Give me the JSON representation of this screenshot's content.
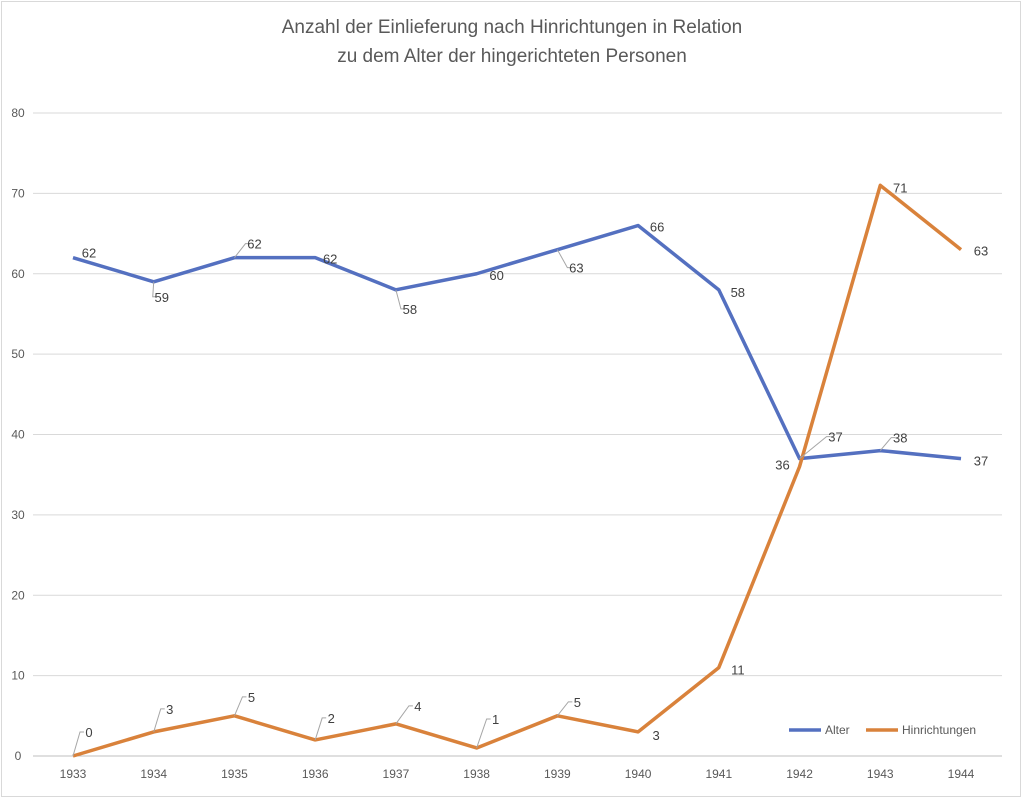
{
  "chart_data": {
    "type": "line",
    "title_lines": [
      "Anzahl der Einlieferung nach Hinrichtungen in Relation",
      "zu dem Alter der hingerichteten Personen"
    ],
    "categories": [
      "1933",
      "1934",
      "1935",
      "1936",
      "1937",
      "1938",
      "1939",
      "1940",
      "1941",
      "1942",
      "1943",
      "1944"
    ],
    "series": [
      {
        "name": "Alter",
        "color": "#5470c0",
        "values": [
          62,
          59,
          62,
          62,
          58,
          60,
          63,
          66,
          58,
          37,
          38,
          37
        ]
      },
      {
        "name": "Hinrichtungen",
        "color": "#d9823b",
        "values": [
          0,
          3,
          5,
          2,
          4,
          1,
          5,
          3,
          11,
          36,
          71,
          63
        ]
      }
    ],
    "ylim": [
      0,
      80
    ],
    "yticks": [
      0,
      10,
      20,
      30,
      40,
      50,
      60,
      70,
      80
    ],
    "xlabel": "",
    "ylabel": "",
    "grid": true,
    "legend": "bottom-right"
  }
}
